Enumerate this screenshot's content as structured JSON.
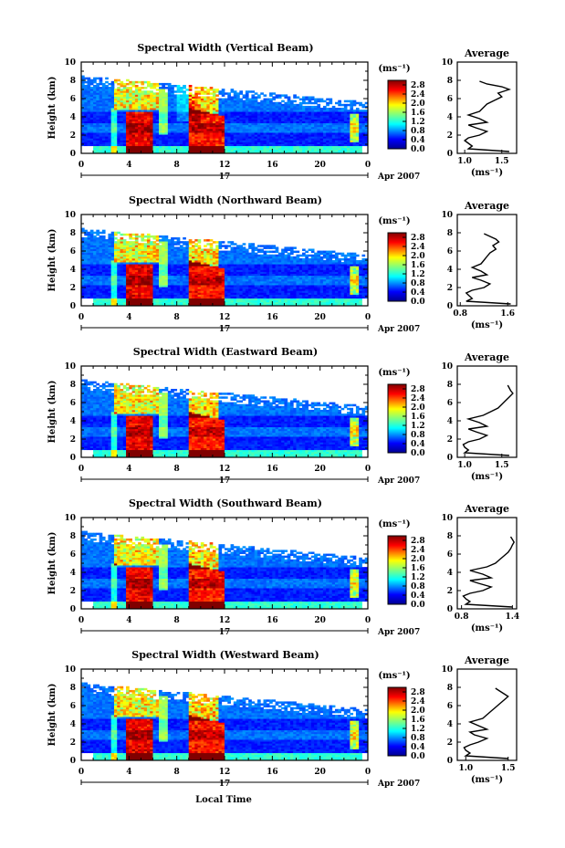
{
  "chart_data": {
    "type": "heatmap",
    "panels": [
      {
        "title": "Spectral Width (Vertical Beam)",
        "avg_xticks": [
          "1.0",
          "1.5"
        ],
        "avg_xlim": [
          0.9,
          1.7
        ],
        "avg_x": [
          1.6,
          1.05,
          1.1,
          1.05,
          1.0,
          1.05,
          1.2,
          1.3,
          1.15,
          1.05,
          1.3,
          1.2,
          1.05,
          1.2,
          1.25,
          1.3,
          1.4,
          1.5,
          1.45,
          1.6,
          1.5,
          1.3,
          1.2
        ]
      },
      {
        "title": "Spectral Width (Northward Beam)",
        "avg_xticks": [
          "0.8",
          "1.6"
        ],
        "avg_xlim": [
          0.75,
          1.75
        ],
        "avg_x": [
          1.65,
          0.9,
          1.0,
          0.95,
          0.9,
          1.0,
          1.2,
          1.3,
          1.15,
          1.0,
          1.25,
          1.15,
          1.0,
          1.15,
          1.2,
          1.25,
          1.3,
          1.4,
          1.35,
          1.45,
          1.4,
          1.3,
          1.2
        ]
      },
      {
        "title": "Spectral Width (Eastward Beam)",
        "avg_xticks": [
          "1.0",
          "1.5"
        ],
        "avg_xlim": [
          0.9,
          1.7
        ],
        "avg_x": [
          1.6,
          1.0,
          1.05,
          1.0,
          0.98,
          1.05,
          1.2,
          1.3,
          1.15,
          1.05,
          1.3,
          1.2,
          1.05,
          1.25,
          1.35,
          1.45,
          1.5,
          1.55,
          1.6,
          1.65,
          1.62,
          1.6,
          1.58
        ]
      },
      {
        "title": "Spectral Width (Southward Beam)",
        "avg_xticks": [
          "0.8",
          "1.4"
        ],
        "avg_xlim": [
          0.75,
          1.45
        ],
        "avg_x": [
          1.4,
          0.85,
          0.9,
          0.85,
          0.82,
          0.9,
          1.05,
          1.15,
          1.0,
          0.9,
          1.15,
          1.05,
          0.9,
          1.1,
          1.2,
          1.25,
          1.3,
          1.35,
          1.38,
          1.4,
          1.42,
          1.4,
          1.38
        ]
      },
      {
        "title": "Spectral Width (Westward Beam)",
        "avg_xticks": [
          "1.0",
          "1.5"
        ],
        "avg_xlim": [
          0.9,
          1.6
        ],
        "avg_x": [
          1.5,
          1.0,
          1.05,
          1.0,
          0.98,
          1.05,
          1.15,
          1.25,
          1.1,
          1.05,
          1.25,
          1.15,
          1.05,
          1.2,
          1.25,
          1.3,
          1.35,
          1.4,
          1.45,
          1.5,
          1.45,
          1.4,
          1.35
        ]
      }
    ],
    "avg_y": [
      0.2,
      0.5,
      0.8,
      1.1,
      1.4,
      1.7,
      2.0,
      2.4,
      2.8,
      3.1,
      3.4,
      3.8,
      4.2,
      4.6,
      5.0,
      5.4,
      5.8,
      6.2,
      6.6,
      7.0,
      7.3,
      7.6,
      7.9
    ],
    "ylabel": "Height (km)",
    "ylim": [
      0,
      10
    ],
    "yticks": [
      "0",
      "2",
      "4",
      "6",
      "8",
      "10"
    ],
    "xlim": [
      0,
      24
    ],
    "xticks": [
      "0",
      "4",
      "8",
      "12",
      "16",
      "20",
      "0"
    ],
    "date_day": "17",
    "date_month": "Apr 2007",
    "xlabel": "Local Time",
    "colorbar_unit": "(ms⁻¹)",
    "colorbar_ticks": [
      "0.0",
      "0.4",
      "0.8",
      "1.2",
      "1.6",
      "2.0",
      "2.4",
      "2.8"
    ],
    "colorbar_range": [
      0.0,
      3.0
    ],
    "avg_title": "Average",
    "avg_ylim": [
      0,
      10
    ],
    "avg_yticks": [
      "0",
      "2",
      "4",
      "6",
      "8",
      "10"
    ],
    "avg_unit": "(ms⁻¹)"
  }
}
